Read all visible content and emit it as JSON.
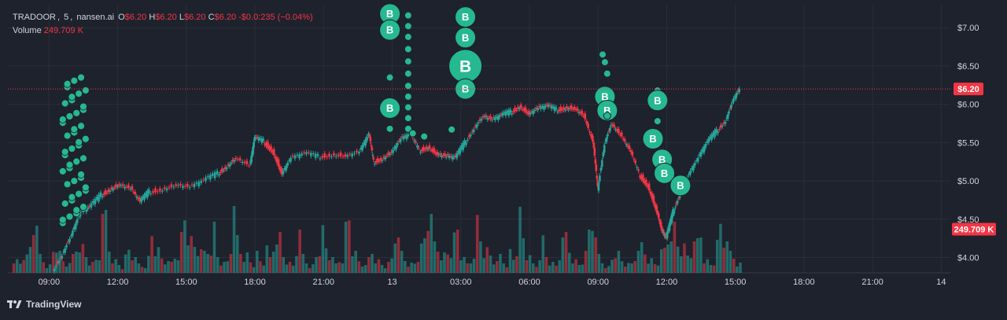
{
  "legend": {
    "symbol": "TRADOOR",
    "interval": "5",
    "source": "nansen.ai",
    "o_label": "O",
    "o_value": "$6.20",
    "h_label": "H",
    "h_value": "$6.20",
    "l_label": "L",
    "l_value": "$6.20",
    "c_label": "C",
    "c_value": "$6.20",
    "change": "-$0.0:235 (−0.04%)",
    "volume_label": "Volume",
    "volume_value": "249.709 K"
  },
  "footer": {
    "brand": "TradingView"
  },
  "colors": {
    "background": "#1e222d",
    "up": "#26a69a",
    "down": "#f23645",
    "bubble": "#26b890",
    "grid": "#2a2e39",
    "text": "#d1d4dc",
    "price_tag": "#f23645"
  },
  "chart_data": {
    "type": "candlestick",
    "x_ticks": [
      "09:00",
      "12:00",
      "15:00",
      "18:00",
      "21:00",
      "13",
      "03:00",
      "06:00",
      "09:00",
      "12:00",
      "15:00",
      "18:00",
      "21:00",
      "14"
    ],
    "y_ticks": [
      "$7.00",
      "$6.50",
      "$6.00",
      "$5.50",
      "$5.00",
      "$4.50",
      "$4.00"
    ],
    "y_tick_values": [
      7.0,
      6.5,
      6.0,
      5.5,
      5.0,
      4.5,
      4.0
    ],
    "ylim": [
      3.8,
      7.3
    ],
    "x_hours": [
      9,
      12,
      15,
      18,
      21,
      24,
      27,
      30,
      33,
      36,
      39,
      42,
      45,
      48
    ],
    "xlim_hours": [
      7.2,
      48.4
    ],
    "last_price": {
      "label": "$6.20",
      "value": 6.2
    },
    "last_volume": {
      "label": "249.709 K"
    },
    "price_path": [
      [
        9.2,
        3.85
      ],
      [
        9.6,
        4.05
      ],
      [
        10.0,
        4.3
      ],
      [
        10.4,
        4.6
      ],
      [
        10.8,
        4.65
      ],
      [
        11.3,
        4.82
      ],
      [
        11.7,
        4.9
      ],
      [
        12.1,
        4.95
      ],
      [
        12.6,
        4.9
      ],
      [
        13.0,
        4.72
      ],
      [
        13.4,
        4.86
      ],
      [
        14.0,
        4.9
      ],
      [
        14.6,
        4.95
      ],
      [
        15.2,
        4.92
      ],
      [
        15.8,
        5.0
      ],
      [
        16.4,
        5.1
      ],
      [
        16.8,
        5.2
      ],
      [
        17.2,
        5.3
      ],
      [
        17.8,
        5.2
      ],
      [
        18.0,
        5.55
      ],
      [
        18.4,
        5.52
      ],
      [
        18.8,
        5.4
      ],
      [
        19.2,
        5.1
      ],
      [
        19.6,
        5.3
      ],
      [
        20.2,
        5.35
      ],
      [
        20.8,
        5.32
      ],
      [
        21.4,
        5.35
      ],
      [
        22.0,
        5.33
      ],
      [
        22.6,
        5.38
      ],
      [
        23.0,
        5.6
      ],
      [
        23.2,
        5.25
      ],
      [
        23.6,
        5.3
      ],
      [
        24.0,
        5.38
      ],
      [
        24.4,
        5.55
      ],
      [
        24.8,
        5.6
      ],
      [
        25.2,
        5.4
      ],
      [
        25.6,
        5.45
      ],
      [
        26.0,
        5.35
      ],
      [
        26.4,
        5.32
      ],
      [
        26.8,
        5.3
      ],
      [
        27.2,
        5.5
      ],
      [
        27.6,
        5.7
      ],
      [
        28.0,
        5.85
      ],
      [
        28.4,
        5.8
      ],
      [
        28.8,
        5.85
      ],
      [
        29.2,
        5.9
      ],
      [
        29.6,
        5.98
      ],
      [
        30.0,
        5.88
      ],
      [
        30.4,
        5.95
      ],
      [
        30.8,
        5.97
      ],
      [
        31.2,
        5.93
      ],
      [
        31.6,
        5.96
      ],
      [
        32.0,
        5.95
      ],
      [
        32.4,
        5.85
      ],
      [
        32.8,
        5.5
      ],
      [
        33.0,
        4.9
      ],
      [
        33.3,
        5.5
      ],
      [
        33.6,
        5.75
      ],
      [
        34.0,
        5.6
      ],
      [
        34.4,
        5.4
      ],
      [
        34.8,
        5.1
      ],
      [
        35.2,
        4.95
      ],
      [
        35.6,
        4.6
      ],
      [
        35.8,
        4.35
      ],
      [
        36.0,
        4.25
      ],
      [
        36.3,
        4.6
      ],
      [
        36.6,
        4.85
      ],
      [
        37.0,
        5.1
      ],
      [
        37.4,
        5.3
      ],
      [
        37.8,
        5.5
      ],
      [
        38.2,
        5.65
      ],
      [
        38.6,
        5.8
      ],
      [
        38.9,
        6.05
      ],
      [
        39.2,
        6.2
      ]
    ],
    "volumes_k": [
      60,
      40,
      35,
      70,
      50,
      90,
      180,
      120,
      60,
      45,
      30,
      25,
      80,
      110,
      60,
      40,
      30,
      25,
      60,
      90,
      130,
      85,
      60,
      40,
      30,
      45,
      60,
      150,
      200,
      90,
      60,
      40,
      30,
      20,
      50,
      80,
      60,
      40,
      30,
      25,
      30,
      50,
      140,
      90,
      70,
      50,
      40,
      30,
      35,
      60,
      80,
      120,
      200,
      150,
      100,
      90,
      80,
      60,
      70,
      80,
      110,
      150,
      60,
      40,
      30,
      40,
      90,
      170,
      120,
      80,
      70,
      60,
      40,
      30
    ],
    "buy_bubbles": [
      {
        "hours": 23.9,
        "price": 7.18,
        "size": "m"
      },
      {
        "hours": 23.9,
        "price": 6.97,
        "size": "m"
      },
      {
        "hours": 24.7,
        "price": 7.16,
        "size": "s"
      },
      {
        "hours": 24.7,
        "price": 7.02,
        "size": "s"
      },
      {
        "hours": 24.7,
        "price": 6.88,
        "size": "s"
      },
      {
        "hours": 24.7,
        "price": 6.72,
        "size": "s"
      },
      {
        "hours": 24.7,
        "price": 6.56,
        "size": "s"
      },
      {
        "hours": 24.7,
        "price": 6.4,
        "size": "s"
      },
      {
        "hours": 24.7,
        "price": 6.24,
        "size": "s"
      },
      {
        "hours": 24.7,
        "price": 6.1,
        "size": "s"
      },
      {
        "hours": 24.7,
        "price": 5.96,
        "size": "s"
      },
      {
        "hours": 24.7,
        "price": 5.82,
        "size": "s"
      },
      {
        "hours": 24.7,
        "price": 5.68,
        "size": "s"
      },
      {
        "hours": 23.9,
        "price": 6.35,
        "size": "s"
      },
      {
        "hours": 23.9,
        "price": 5.95,
        "size": "m"
      },
      {
        "hours": 23.9,
        "price": 5.68,
        "size": "s"
      },
      {
        "hours": 24.9,
        "price": 5.62,
        "size": "s"
      },
      {
        "hours": 25.4,
        "price": 5.58,
        "size": "s"
      },
      {
        "hours": 26.6,
        "price": 5.67,
        "size": "s"
      },
      {
        "hours": 27.2,
        "price": 7.14,
        "size": "m"
      },
      {
        "hours": 27.2,
        "price": 6.87,
        "size": "m"
      },
      {
        "hours": 27.2,
        "price": 6.5,
        "size": "l"
      },
      {
        "hours": 27.2,
        "price": 6.2,
        "size": "m"
      },
      {
        "hours": 33.2,
        "price": 6.65,
        "size": "s"
      },
      {
        "hours": 33.3,
        "price": 6.55,
        "size": "s"
      },
      {
        "hours": 33.4,
        "price": 6.4,
        "size": "s"
      },
      {
        "hours": 33.3,
        "price": 6.1,
        "size": "m"
      },
      {
        "hours": 33.4,
        "price": 5.92,
        "size": "m"
      },
      {
        "hours": 33.4,
        "price": 5.85,
        "size": "s"
      },
      {
        "hours": 35.6,
        "price": 6.18,
        "size": "s"
      },
      {
        "hours": 35.6,
        "price": 6.05,
        "size": "m"
      },
      {
        "hours": 35.6,
        "price": 5.78,
        "size": "s"
      },
      {
        "hours": 35.4,
        "price": 5.55,
        "size": "m"
      },
      {
        "hours": 35.8,
        "price": 5.28,
        "size": "m"
      },
      {
        "hours": 35.9,
        "price": 5.1,
        "size": "m"
      },
      {
        "hours": 36.6,
        "price": 4.94,
        "size": "m"
      }
    ],
    "early_buy_cluster": {
      "hours_from": 9.6,
      "hours_to": 10.6,
      "price_from": 4.45,
      "price_to": 6.35,
      "count": 46
    }
  }
}
